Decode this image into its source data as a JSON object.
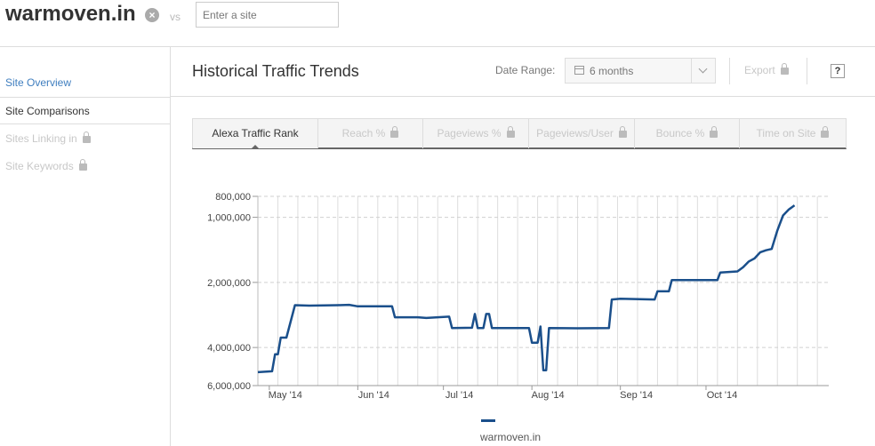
{
  "header": {
    "site": "warmoven.in",
    "vs": "vs",
    "compare_placeholder": "Enter a site"
  },
  "sidebar": {
    "items": [
      {
        "label": "Site Overview",
        "state": "link"
      },
      {
        "label": "Site Comparisons",
        "state": "active"
      },
      {
        "label": "Sites Linking in",
        "state": "locked"
      },
      {
        "label": "Site Keywords",
        "state": "locked"
      }
    ]
  },
  "main": {
    "title": "Historical Traffic Trends",
    "date_range_label": "Date Range:",
    "date_range_value": "6 months",
    "export_label": "Export",
    "help_label": "?"
  },
  "tabs": [
    {
      "label": "Alexa Traffic Rank",
      "locked": false
    },
    {
      "label": "Reach %",
      "locked": true
    },
    {
      "label": "Pageviews %",
      "locked": true
    },
    {
      "label": "Pageviews/User",
      "locked": true
    },
    {
      "label": "Bounce %",
      "locked": true
    },
    {
      "label": "Time on Site",
      "locked": true
    }
  ],
  "chart_data": {
    "type": "line",
    "y_scale": "log",
    "y_inverted": true,
    "y_ticks": [
      800000,
      1000000,
      2000000,
      4000000,
      6000000
    ],
    "y_tick_labels": [
      "800,000",
      "1,000,000",
      "2,000,000",
      "4,000,000",
      "6,000,000"
    ],
    "x_ticks": [
      "2014-05-01",
      "2014-06-01",
      "2014-07-01",
      "2014-08-01",
      "2014-09-01",
      "2014-10-01"
    ],
    "x_tick_labels": [
      "May '14",
      "Jun '14",
      "Jul '14",
      "Aug '14",
      "Sep '14",
      "Oct '14"
    ],
    "xlim": [
      "2014-04-27",
      "2014-11-13"
    ],
    "ylim": [
      800000,
      6000000
    ],
    "grid": true,
    "legend_position": "bottom-center",
    "colors": {
      "series": "#1a4f8b",
      "grid": "#dddddd"
    },
    "series": [
      {
        "name": "warmoven.in",
        "points": [
          [
            "2014-04-27",
            5200000
          ],
          [
            "2014-05-02",
            5150000
          ],
          [
            "2014-05-03",
            4300000
          ],
          [
            "2014-05-04",
            4300000
          ],
          [
            "2014-05-05",
            3600000
          ],
          [
            "2014-05-07",
            3600000
          ],
          [
            "2014-05-10",
            2550000
          ],
          [
            "2014-05-15",
            2560000
          ],
          [
            "2014-05-25",
            2550000
          ],
          [
            "2014-05-29",
            2540000
          ],
          [
            "2014-06-01",
            2580000
          ],
          [
            "2014-06-13",
            2580000
          ],
          [
            "2014-06-14",
            2900000
          ],
          [
            "2014-06-22",
            2900000
          ],
          [
            "2014-06-25",
            2920000
          ],
          [
            "2014-07-03",
            2880000
          ],
          [
            "2014-07-04",
            3250000
          ],
          [
            "2014-07-11",
            3240000
          ],
          [
            "2014-07-12",
            2800000
          ],
          [
            "2014-07-13",
            3250000
          ],
          [
            "2014-07-15",
            3250000
          ],
          [
            "2014-07-16",
            2800000
          ],
          [
            "2014-07-17",
            2800000
          ],
          [
            "2014-07-18",
            3250000
          ],
          [
            "2014-07-31",
            3250000
          ],
          [
            "2014-08-01",
            3800000
          ],
          [
            "2014-08-03",
            3800000
          ],
          [
            "2014-08-04",
            3200000
          ],
          [
            "2014-08-05",
            5100000
          ],
          [
            "2014-08-06",
            5100000
          ],
          [
            "2014-08-07",
            3250000
          ],
          [
            "2014-08-17",
            3260000
          ],
          [
            "2014-08-28",
            3250000
          ],
          [
            "2014-08-29",
            2400000
          ],
          [
            "2014-09-01",
            2380000
          ],
          [
            "2014-09-13",
            2400000
          ],
          [
            "2014-09-14",
            2200000
          ],
          [
            "2014-09-18",
            2200000
          ],
          [
            "2014-09-19",
            1950000
          ],
          [
            "2014-09-28",
            1950000
          ],
          [
            "2014-10-05",
            1950000
          ],
          [
            "2014-10-06",
            1800000
          ],
          [
            "2014-10-12",
            1780000
          ],
          [
            "2014-10-14",
            1700000
          ],
          [
            "2014-10-16",
            1600000
          ],
          [
            "2014-10-18",
            1550000
          ],
          [
            "2014-10-20",
            1450000
          ],
          [
            "2014-10-22",
            1420000
          ],
          [
            "2014-10-24",
            1400000
          ],
          [
            "2014-10-26",
            1150000
          ],
          [
            "2014-10-28",
            980000
          ],
          [
            "2014-10-30",
            920000
          ],
          [
            "2014-11-01",
            880000
          ]
        ]
      }
    ]
  }
}
